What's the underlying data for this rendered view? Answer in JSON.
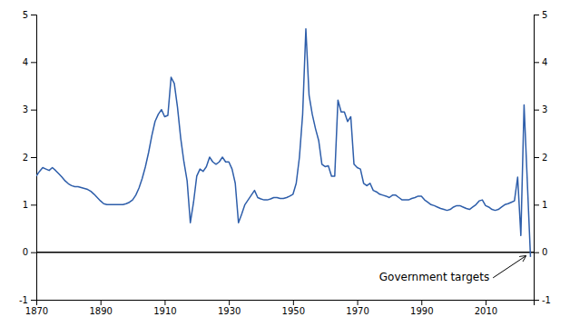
{
  "chart_data": {
    "type": "line",
    "x": [
      1870,
      1871,
      1872,
      1873,
      1874,
      1875,
      1876,
      1877,
      1878,
      1879,
      1880,
      1881,
      1882,
      1883,
      1884,
      1885,
      1886,
      1887,
      1888,
      1889,
      1890,
      1891,
      1892,
      1893,
      1894,
      1895,
      1896,
      1897,
      1898,
      1899,
      1900,
      1901,
      1902,
      1903,
      1904,
      1905,
      1906,
      1907,
      1908,
      1909,
      1910,
      1911,
      1912,
      1913,
      1914,
      1915,
      1916,
      1917,
      1918,
      1919,
      1920,
      1921,
      1922,
      1923,
      1924,
      1925,
      1926,
      1927,
      1928,
      1929,
      1930,
      1931,
      1932,
      1933,
      1934,
      1935,
      1936,
      1937,
      1938,
      1939,
      1940,
      1941,
      1942,
      1943,
      1944,
      1945,
      1946,
      1947,
      1948,
      1949,
      1950,
      1951,
      1952,
      1953,
      1954,
      1955,
      1956,
      1957,
      1958,
      1959,
      1960,
      1961,
      1962,
      1963,
      1964,
      1965,
      1966,
      1967,
      1968,
      1969,
      1970,
      1971,
      1972,
      1973,
      1974,
      1975,
      1976,
      1977,
      1978,
      1979,
      1980,
      1981,
      1982,
      1983,
      1984,
      1985,
      1986,
      1987,
      1988,
      1989,
      1990,
      1991,
      1992,
      1993,
      1994,
      1995,
      1996,
      1997,
      1998,
      1999,
      2000,
      2001,
      2002,
      2003,
      2004,
      2005,
      2006,
      2007,
      2008,
      2009,
      2010,
      2011,
      2012,
      2013,
      2014,
      2015,
      2016,
      2017,
      2018,
      2019,
      2020,
      2021,
      2022,
      2023,
      2024
    ],
    "values": [
      1.6,
      1.7,
      1.78,
      1.75,
      1.72,
      1.78,
      1.72,
      1.65,
      1.58,
      1.5,
      1.44,
      1.4,
      1.38,
      1.38,
      1.36,
      1.34,
      1.32,
      1.28,
      1.22,
      1.15,
      1.08,
      1.02,
      1.0,
      1.0,
      1.0,
      1.0,
      1.0,
      1.0,
      1.02,
      1.05,
      1.1,
      1.2,
      1.35,
      1.55,
      1.8,
      2.1,
      2.45,
      2.75,
      2.9,
      3.0,
      2.85,
      2.88,
      3.68,
      3.55,
      3.05,
      2.4,
      1.9,
      1.5,
      0.62,
      1.05,
      1.6,
      1.75,
      1.7,
      1.8,
      2.0,
      1.9,
      1.85,
      1.9,
      2.0,
      1.9,
      1.9,
      1.75,
      1.45,
      0.62,
      0.8,
      1.0,
      1.1,
      1.2,
      1.3,
      1.15,
      1.12,
      1.1,
      1.1,
      1.12,
      1.15,
      1.15,
      1.13,
      1.13,
      1.15,
      1.18,
      1.22,
      1.45,
      2.0,
      2.9,
      4.7,
      3.3,
      2.9,
      2.6,
      2.35,
      1.85,
      1.8,
      1.82,
      1.6,
      1.6,
      3.2,
      2.95,
      2.95,
      2.75,
      2.85,
      1.85,
      1.78,
      1.75,
      1.45,
      1.4,
      1.45,
      1.3,
      1.27,
      1.22,
      1.2,
      1.18,
      1.15,
      1.2,
      1.2,
      1.15,
      1.1,
      1.1,
      1.1,
      1.13,
      1.15,
      1.18,
      1.18,
      1.1,
      1.05,
      1.0,
      0.98,
      0.95,
      0.92,
      0.9,
      0.88,
      0.9,
      0.95,
      0.98,
      0.98,
      0.95,
      0.92,
      0.9,
      0.95,
      1.0,
      1.08,
      1.1,
      0.98,
      0.95,
      0.9,
      0.88,
      0.9,
      0.95,
      1.0,
      1.02,
      1.05,
      1.08,
      1.58,
      0.35,
      3.1,
      1.5,
      -0.1
    ],
    "color": "#2e5eaa",
    "xlim": [
      1870,
      2025
    ],
    "ylim": [
      -1,
      5
    ],
    "xticks": [
      1870,
      1890,
      1910,
      1930,
      1950,
      1970,
      1990,
      2010
    ],
    "yticks": [
      -1,
      0,
      1,
      2,
      3,
      4,
      5
    ],
    "y2lim": [
      -1,
      5
    ],
    "y2ticks": [
      -1,
      0,
      1,
      2,
      3,
      4,
      5
    ],
    "hlines": [
      {
        "y": 0,
        "color": "#000000"
      }
    ],
    "annotations": [
      {
        "text": "Government targets",
        "x": 2022.5,
        "y": -0.08
      }
    ]
  }
}
